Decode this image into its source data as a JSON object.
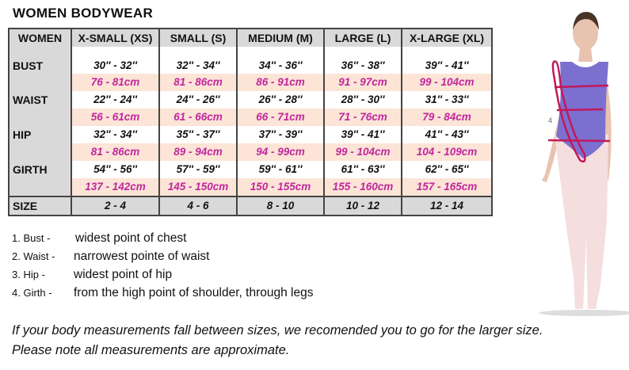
{
  "title": "WOMEN BODYWEAR",
  "table": {
    "headers": [
      "WOMEN",
      "X-SMALL (XS)",
      "SMALL (S)",
      "MEDIUM (M)",
      "LARGE (L)",
      "X-LARGE (XL)"
    ],
    "rows": [
      {
        "label": "BUST",
        "inches": [
          "30'' - 32''",
          "32'' - 34''",
          "34'' - 36''",
          "36'' - 38''",
          "39'' - 41''"
        ],
        "cm": [
          "76 - 81cm",
          "81 - 86cm",
          "86 - 91cm",
          "91 - 97cm",
          "99 - 104cm"
        ]
      },
      {
        "label": "WAIST",
        "inches": [
          "22'' - 24''",
          "24'' - 26''",
          "26'' - 28''",
          "28'' - 30''",
          "31'' - 33''"
        ],
        "cm": [
          "56 - 61cm",
          "61 - 66cm",
          "66 - 71cm",
          "71 - 76cm",
          "79 - 84cm"
        ]
      },
      {
        "label": "HIP",
        "inches": [
          "32'' - 34''",
          "35'' - 37''",
          "37'' - 39''",
          "39'' - 41''",
          "41'' - 43''"
        ],
        "cm": [
          "81 - 86cm",
          "89 - 94cm",
          "94 - 99cm",
          "99 - 104cm",
          "104 - 109cm"
        ]
      },
      {
        "label": "GIRTH",
        "inches": [
          "54'' - 56''",
          "57'' - 59''",
          "59'' - 61''",
          "61'' - 63''",
          "62'' - 65''"
        ],
        "cm": [
          "137 - 142cm",
          "145 - 150cm",
          "150 - 155cm",
          "155 - 160cm",
          "157 - 165cm"
        ]
      }
    ],
    "size": {
      "label": "SIZE",
      "values": [
        "2 - 4",
        "4 - 6",
        "8 - 10",
        "10 - 12",
        "12 - 14"
      ]
    }
  },
  "notes": [
    {
      "num": "1. Bust -",
      "text": "widest point of chest"
    },
    {
      "num": "2. Waist -",
      "text": "narrowest pointe of waist"
    },
    {
      "num": "3. Hip -",
      "text": "widest point of hip"
    },
    {
      "num": "4. Girth -",
      "text": "from the high point of shoulder, through legs"
    }
  ],
  "footer": [
    "If your body measurements fall between sizes, we recomended you to go for the larger size.",
    "Please note all measurements are approximate."
  ],
  "figure": {
    "marker_label": "4",
    "colors": {
      "leotard": "#7b6fd0",
      "measure": "#c2185b",
      "tights": "#f5dede"
    }
  }
}
